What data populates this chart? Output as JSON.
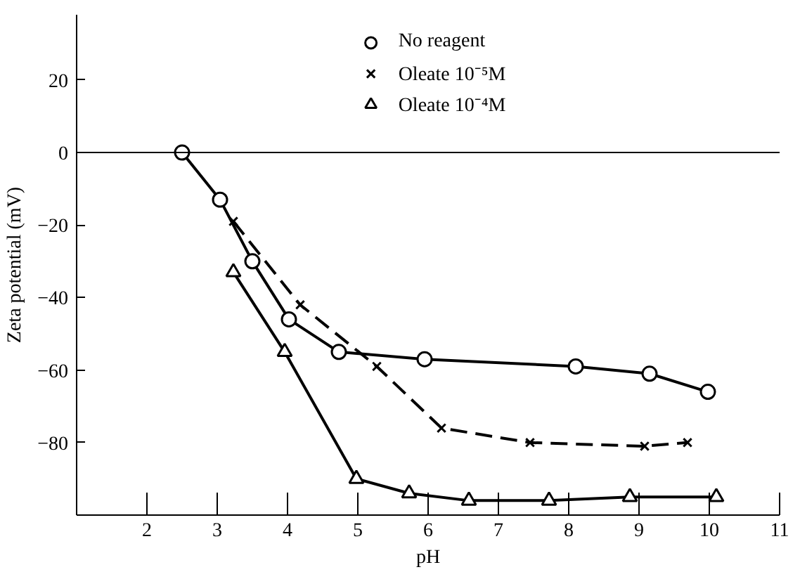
{
  "chart_data": {
    "type": "line",
    "xlabel": "pH",
    "ylabel": "Zeta potential (mV)",
    "xlim": [
      1,
      11
    ],
    "ylim": [
      -100,
      38
    ],
    "xticks": [
      2,
      3,
      4,
      5,
      6,
      7,
      8,
      9,
      10,
      11
    ],
    "yticks": [
      -80,
      -60,
      -40,
      -20,
      0,
      20
    ],
    "grid": false,
    "legend": "top",
    "ref_lines": [
      {
        "axis": "y",
        "value": 0,
        "label": null
      }
    ],
    "series": [
      {
        "name": "No reagent",
        "color": "#000000",
        "marker": "circle",
        "line_style": "solid",
        "x": [
          2.5,
          3.04,
          3.5,
          4.02,
          4.73,
          5.95,
          8.1,
          9.15,
          9.98
        ],
        "values": [
          0,
          -13,
          -30,
          -46,
          -55,
          -57,
          -59,
          -61,
          -66
        ]
      },
      {
        "name": "Oleate 10⁻⁵M",
        "color": "#000000",
        "marker": "cross",
        "line_style": "dashed",
        "x": [
          3.23,
          4.18,
          5.27,
          6.19,
          7.45,
          9.08,
          9.69
        ],
        "values": [
          -19,
          -42,
          -59,
          -76,
          -80,
          -81,
          -80
        ]
      },
      {
        "name": "Oleate 10⁻⁴M",
        "color": "#000000",
        "marker": "triangle",
        "line_style": "solid",
        "x": [
          3.23,
          3.96,
          4.98,
          5.73,
          6.58,
          7.72,
          8.87,
          10.1
        ],
        "values": [
          -33,
          -55,
          -90,
          -94,
          -96,
          -96,
          -95,
          -95
        ]
      }
    ]
  }
}
